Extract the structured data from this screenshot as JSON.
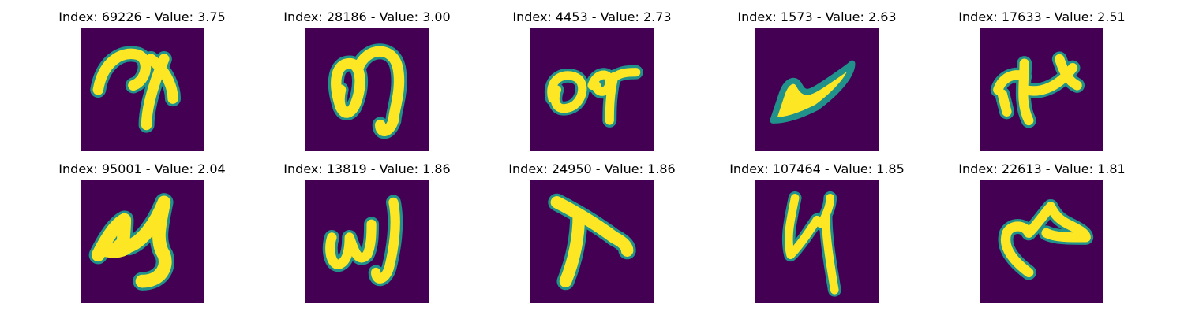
{
  "figure": {
    "background": "#ffffff",
    "panels": [
      {
        "title": "Index: 69226 - Value: 3.75",
        "index": 69226,
        "value": 3.75
      },
      {
        "title": "Index: 28186 - Value: 3.00",
        "index": 28186,
        "value": 3.0
      },
      {
        "title": "Index: 4453 - Value: 2.73",
        "index": 4453,
        "value": 2.73
      },
      {
        "title": "Index: 1573 - Value: 2.63",
        "index": 1573,
        "value": 2.63
      },
      {
        "title": "Index: 17633 - Value: 2.51",
        "index": 17633,
        "value": 2.51
      },
      {
        "title": "Index: 95001 - Value: 2.04",
        "index": 95001,
        "value": 2.04
      },
      {
        "title": "Index: 13819 - Value: 1.86",
        "index": 13819,
        "value": 1.86
      },
      {
        "title": "Index: 24950 - Value: 1.86",
        "index": 24950,
        "value": 1.86
      },
      {
        "title": "Index: 107464 - Value: 1.85",
        "index": 107464,
        "value": 1.85
      },
      {
        "title": "Index: 22613 - Value: 1.81",
        "index": 22613,
        "value": 1.81
      }
    ]
  },
  "colors": {
    "background_cell": "#440154",
    "stroke_core": "#fde725",
    "stroke_edge": "#21918c"
  }
}
